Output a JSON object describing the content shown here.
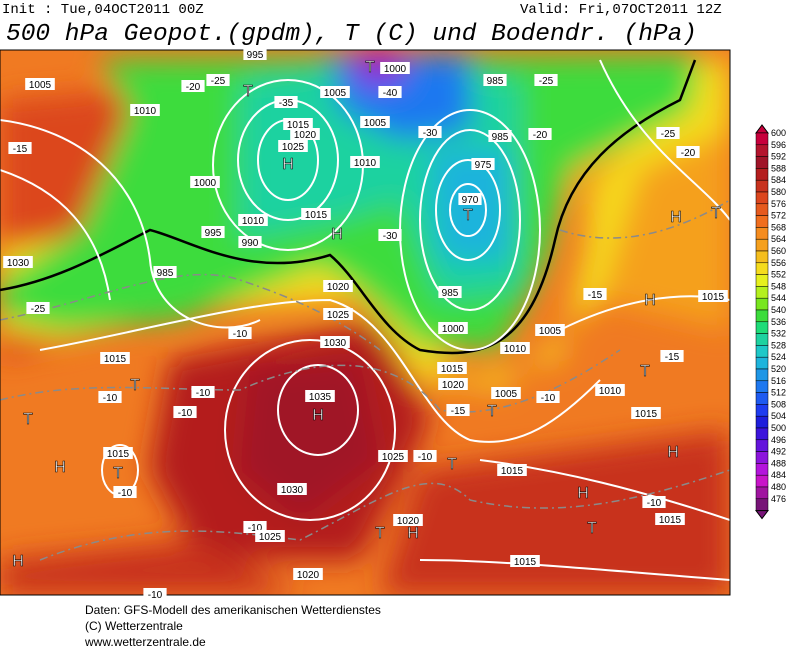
{
  "header": {
    "init": "Init : Tue,04OCT2011 00Z",
    "valid": "Valid: Fri,07OCT2011 12Z",
    "title": "500 hPa Geopot.(gpdm), T (C) und Bodendr. (hPa)"
  },
  "colorbar": {
    "levels": [
      600,
      596,
      592,
      588,
      584,
      580,
      576,
      572,
      568,
      564,
      560,
      556,
      552,
      548,
      544,
      540,
      536,
      532,
      528,
      524,
      520,
      516,
      512,
      508,
      504,
      500,
      496,
      492,
      488,
      484,
      480,
      476
    ],
    "colors": [
      "#c8003c",
      "#b4142d",
      "#a01428",
      "#b41e1e",
      "#c8321e",
      "#dc461e",
      "#e65a1e",
      "#f06e1e",
      "#f58c1e",
      "#f5a01e",
      "#f5be1e",
      "#f5dc1e",
      "#e6f01e",
      "#b4f01e",
      "#78e61e",
      "#3cdc3c",
      "#1edc78",
      "#1ed2a0",
      "#1ec8c8",
      "#1eb4dc",
      "#1e96e6",
      "#1e78f0",
      "#1e5af0",
      "#1e3cf0",
      "#1e1edc",
      "#3c14dc",
      "#6414dc",
      "#8c14dc",
      "#b414dc",
      "#c814c8",
      "#a014a0",
      "#781478"
    ]
  },
  "map_labels": [
    "1005",
    "1010",
    "-15",
    "-20",
    "-25",
    "995",
    "T",
    "1000",
    "T",
    "-40",
    "1005",
    "-35",
    "985",
    "-25",
    "1015",
    "1020",
    "1025",
    "H",
    "1010",
    "1005",
    "-30",
    "985",
    "975",
    "970",
    "T",
    "-20",
    "-25",
    "-20",
    "1000",
    "995",
    "990",
    "1010",
    "1015",
    "H",
    "-30",
    "985",
    "1020",
    "1025",
    "H",
    "T",
    "1030",
    "-25",
    "985",
    "1000",
    "1005",
    "1010",
    "1015",
    "H",
    "-15",
    "-15",
    "T",
    "1015",
    "T",
    "-10",
    "-10",
    "-10",
    "1030",
    "1035",
    "H",
    "T",
    "H",
    "1015",
    "T",
    "-10",
    "-10",
    "1025",
    "-10",
    "T",
    "1015",
    "1020",
    "T",
    "1005",
    "-15",
    "-10",
    "1010",
    "1015",
    "H",
    "1015",
    "H",
    "-10",
    "1015",
    "T",
    "1030",
    "-10",
    "1025",
    "1020",
    "H",
    "T",
    "1015",
    "H",
    "1020",
    "-10"
  ],
  "footer": [
    "Daten: GFS-Modell des amerikanischen Wetterdienstes",
    "(C) Wetterzentrale",
    "www.wetterzentrale.de"
  ]
}
